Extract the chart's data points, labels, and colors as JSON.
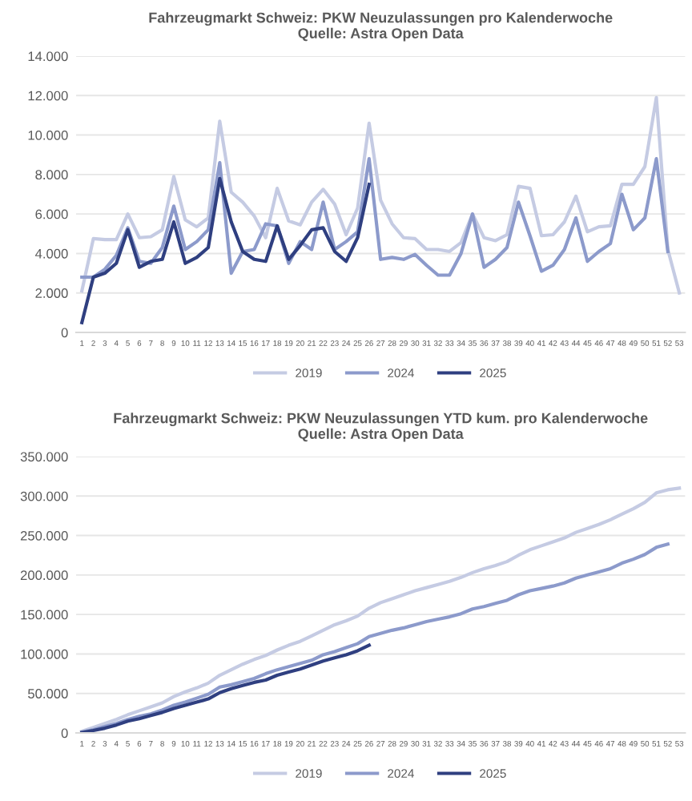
{
  "chart_data": [
    {
      "type": "line",
      "title": "Fahrzeugmarkt Schweiz: PKW Neuzulassungen pro Kalenderwoche\nQuelle: Astra Open Data",
      "categories": [
        "1",
        "2",
        "3",
        "4",
        "5",
        "6",
        "7",
        "8",
        "9",
        "10",
        "11",
        "12",
        "13",
        "14",
        "15",
        "16",
        "17",
        "18",
        "19",
        "20",
        "21",
        "22",
        "23",
        "24",
        "25",
        "26",
        "27",
        "28",
        "29",
        "30",
        "31",
        "32",
        "33",
        "34",
        "35",
        "36",
        "37",
        "38",
        "39",
        "40",
        "41",
        "42",
        "43",
        "44",
        "45",
        "46",
        "47",
        "48",
        "49",
        "50",
        "51",
        "52",
        "53"
      ],
      "series": [
        {
          "name": "2019",
          "color": "#c5cbe3",
          "values": [
            2100,
            4750,
            4700,
            4700,
            6000,
            4800,
            4850,
            5200,
            7900,
            5700,
            5350,
            5800,
            10700,
            7100,
            6600,
            5900,
            4800,
            7300,
            5650,
            5450,
            6600,
            7250,
            6500,
            4950,
            6300,
            10600,
            6700,
            5500,
            4800,
            4750,
            4200,
            4200,
            4100,
            4550,
            6000,
            4800,
            4650,
            4950,
            7400,
            7300,
            4900,
            4950,
            5600,
            6900,
            5100,
            5350,
            5400,
            7500,
            7500,
            8400,
            11900,
            4200,
            2000
          ]
        },
        {
          "name": "2024",
          "color": "#8c9acb",
          "values": [
            2800,
            2800,
            3200,
            3900,
            5300,
            3600,
            3500,
            4300,
            6400,
            4200,
            4600,
            5200,
            8600,
            3000,
            4100,
            4200,
            5500,
            5400,
            3500,
            4600,
            4200,
            6600,
            4200,
            4600,
            5100,
            8800,
            3700,
            3800,
            3700,
            3950,
            3400,
            2900,
            2900,
            4000,
            6000,
            3300,
            3700,
            4300,
            6600,
            4900,
            3100,
            3400,
            4200,
            5800,
            3600,
            4100,
            4500,
            7000,
            5200,
            5800,
            8800,
            4100,
            null
          ]
        },
        {
          "name": "2025",
          "color": "#2f3f80",
          "values": [
            500,
            2800,
            3000,
            3500,
            5200,
            3300,
            3600,
            3700,
            5600,
            3500,
            3800,
            4300,
            7800,
            5600,
            4100,
            3700,
            3600,
            5400,
            3700,
            4400,
            5200,
            5300,
            4100,
            3600,
            4800,
            7500,
            null,
            null,
            null,
            null,
            null,
            null,
            null,
            null,
            null,
            null,
            null,
            null,
            null,
            null,
            null,
            null,
            null,
            null,
            null,
            null,
            null,
            null,
            null,
            null,
            null,
            null,
            null
          ]
        }
      ],
      "ylim": [
        0,
        14000
      ],
      "yticks": [
        {
          "value": 0,
          "label": "0"
        },
        {
          "value": 2000,
          "label": "2.000"
        },
        {
          "value": 4000,
          "label": "4.000"
        },
        {
          "value": 6000,
          "label": "6.000"
        },
        {
          "value": 8000,
          "label": "8.000"
        },
        {
          "value": 10000,
          "label": "10.000"
        },
        {
          "value": 12000,
          "label": "12.000"
        },
        {
          "value": 14000,
          "label": "14.000"
        }
      ],
      "grid": "y",
      "legend": "bottom",
      "marker": "none",
      "line_style": "solid"
    },
    {
      "type": "line",
      "title": "Fahrzeugmarkt Schweiz: PKW Neuzulassungen YTD kum. pro Kalenderwoche\nQuelle: Astra Open Data",
      "categories": [
        "1",
        "2",
        "3",
        "4",
        "5",
        "6",
        "7",
        "8",
        "9",
        "10",
        "11",
        "12",
        "13",
        "14",
        "15",
        "16",
        "17",
        "18",
        "19",
        "20",
        "21",
        "22",
        "23",
        "24",
        "25",
        "26",
        "27",
        "28",
        "29",
        "30",
        "31",
        "32",
        "33",
        "34",
        "35",
        "36",
        "37",
        "38",
        "39",
        "40",
        "41",
        "42",
        "43",
        "44",
        "45",
        "46",
        "47",
        "48",
        "49",
        "50",
        "51",
        "52",
        "53"
      ],
      "series": [
        {
          "name": "2019",
          "color": "#c5cbe3",
          "values": [
            2000,
            7000,
            12000,
            17000,
            23000,
            28000,
            33000,
            38000,
            46000,
            52000,
            57000,
            63000,
            73000,
            80000,
            87000,
            93000,
            98000,
            105000,
            111000,
            116000,
            123000,
            130000,
            137000,
            142000,
            148000,
            158000,
            165000,
            170000,
            175000,
            180000,
            184000,
            188000,
            192000,
            197000,
            203000,
            208000,
            212000,
            217000,
            225000,
            232000,
            237000,
            242000,
            247000,
            254000,
            259000,
            264000,
            270000,
            277000,
            284000,
            292000,
            304000,
            308000,
            310000
          ]
        },
        {
          "name": "2024",
          "color": "#8c9acb",
          "values": [
            1000,
            4000,
            8000,
            12000,
            17000,
            21000,
            24000,
            29000,
            35000,
            39000,
            44000,
            49000,
            58000,
            61000,
            65000,
            69000,
            75000,
            80000,
            84000,
            88000,
            92000,
            99000,
            103000,
            108000,
            113000,
            122000,
            126000,
            130000,
            133000,
            137000,
            141000,
            144000,
            147000,
            151000,
            157000,
            160000,
            164000,
            168000,
            175000,
            180000,
            183000,
            186000,
            190000,
            196000,
            200000,
            204000,
            208000,
            215000,
            220000,
            226000,
            235000,
            239000,
            null
          ]
        },
        {
          "name": "2025",
          "color": "#2f3f80",
          "values": [
            500,
            3000,
            6000,
            10000,
            15000,
            18000,
            22000,
            26000,
            31000,
            35000,
            39000,
            43000,
            51000,
            56000,
            60000,
            64000,
            67000,
            73000,
            77000,
            81000,
            86000,
            91000,
            95000,
            99000,
            104000,
            111000,
            null,
            null,
            null,
            null,
            null,
            null,
            null,
            null,
            null,
            null,
            null,
            null,
            null,
            null,
            null,
            null,
            null,
            null,
            null,
            null,
            null,
            null,
            null,
            null,
            null,
            null,
            null
          ]
        }
      ],
      "ylim": [
        0,
        350000
      ],
      "yticks": [
        {
          "value": 0,
          "label": "0"
        },
        {
          "value": 50000,
          "label": "50.000"
        },
        {
          "value": 100000,
          "label": "100.000"
        },
        {
          "value": 150000,
          "label": "150.000"
        },
        {
          "value": 200000,
          "label": "200.000"
        },
        {
          "value": 250000,
          "label": "250.000"
        },
        {
          "value": 300000,
          "label": "300.000"
        },
        {
          "value": 350000,
          "label": "350.000"
        }
      ],
      "grid": "y",
      "legend": "bottom",
      "marker": "none",
      "line_style": "solid"
    }
  ]
}
